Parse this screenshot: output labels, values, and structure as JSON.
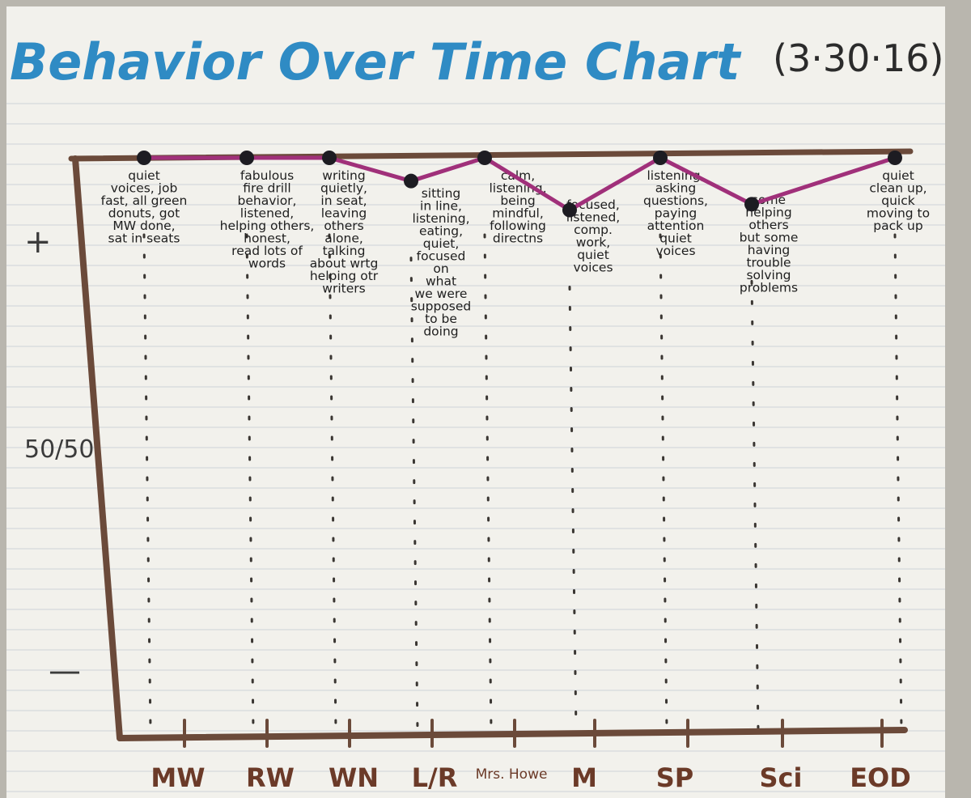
{
  "chart_data": {
    "type": "line",
    "title": "Behavior Over Time Chart",
    "date": "(3·30·16)",
    "y_tick_labels": {
      "top": "+",
      "middle": "50/50",
      "bottom": "—"
    },
    "categories": [
      "MW",
      "RW",
      "WN",
      "L/R",
      "Mrs. Howe",
      "M",
      "SP",
      "Sci",
      "EOD"
    ],
    "values": [
      100,
      100,
      100,
      96,
      100,
      91,
      100,
      92,
      100
    ],
    "ylim": [
      0,
      100
    ],
    "annotations": [
      [
        "quiet",
        "voices, job",
        "fast, all green",
        "donuts, got",
        "MW done,",
        "sat in seats"
      ],
      [
        "fabulous",
        "fire drill",
        "behavior,",
        "listened,",
        "helping others,",
        "honest,",
        "read lots of",
        "words"
      ],
      [
        "writing",
        "quietly,",
        "in seat,",
        "leaving",
        "others",
        "alone,",
        "talking",
        "about wrtg",
        "helping otr",
        "writers"
      ],
      [
        "sitting",
        "in line,",
        "listening,",
        "eating,",
        "quiet,",
        "focused",
        "on",
        "what",
        "we were",
        "supposed",
        "to be",
        "doing"
      ],
      [
        "calm,",
        "listening,",
        "being",
        "mindful,",
        "following",
        "directns"
      ],
      [
        "focused,",
        "listened,",
        "comp.",
        "work,",
        "quiet",
        "voices"
      ],
      [
        "listening,",
        "asking",
        "questions,",
        "paying",
        "attention",
        "quiet",
        "voices"
      ],
      [
        "some",
        "helping",
        "others",
        "but some",
        "having",
        "trouble",
        "solving",
        "problems"
      ],
      [
        "quiet",
        "clean up,",
        "quick",
        "moving to",
        "pack up"
      ]
    ],
    "grid": true,
    "legend": "none",
    "colors": {
      "line": "#a0307a",
      "axes": "#6b4a3a",
      "points": "#1d1c22",
      "title": "#2f8bc4",
      "date": "#2b2b2b"
    }
  }
}
